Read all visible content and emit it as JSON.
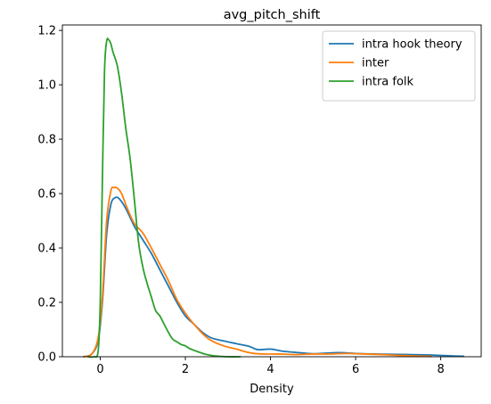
{
  "chart_data": {
    "type": "line",
    "title": "avg_pitch_shift",
    "xlabel": "Density",
    "ylabel": "",
    "xlim": [
      -0.89,
      8.95
    ],
    "ylim": [
      0,
      1.22
    ],
    "xticks": [
      0,
      2,
      4,
      6,
      8
    ],
    "yticks": [
      0.0,
      0.2,
      0.4,
      0.6,
      0.8,
      1.0,
      1.2
    ],
    "grid": false,
    "legend_position": "top-right",
    "series": [
      {
        "name": "intra hook theory",
        "color": "#1f77b4",
        "points": [
          [
            -0.4,
            0.0
          ],
          [
            -0.2,
            0.01
          ],
          [
            -0.05,
            0.06
          ],
          [
            0.05,
            0.2
          ],
          [
            0.15,
            0.45
          ],
          [
            0.25,
            0.56
          ],
          [
            0.35,
            0.585
          ],
          [
            0.45,
            0.58
          ],
          [
            0.6,
            0.545
          ],
          [
            0.8,
            0.48
          ],
          [
            1.0,
            0.43
          ],
          [
            1.2,
            0.38
          ],
          [
            1.4,
            0.32
          ],
          [
            1.6,
            0.26
          ],
          [
            1.8,
            0.2
          ],
          [
            2.0,
            0.15
          ],
          [
            2.2,
            0.12
          ],
          [
            2.4,
            0.09
          ],
          [
            2.6,
            0.07
          ],
          [
            2.9,
            0.058
          ],
          [
            3.2,
            0.048
          ],
          [
            3.5,
            0.038
          ],
          [
            3.7,
            0.026
          ],
          [
            4.0,
            0.028
          ],
          [
            4.3,
            0.02
          ],
          [
            4.6,
            0.016
          ],
          [
            5.0,
            0.011
          ],
          [
            5.3,
            0.013
          ],
          [
            5.6,
            0.015
          ],
          [
            6.0,
            0.012
          ],
          [
            6.4,
            0.01
          ],
          [
            6.8,
            0.009
          ],
          [
            7.2,
            0.008
          ],
          [
            7.6,
            0.007
          ],
          [
            8.0,
            0.005
          ],
          [
            8.3,
            0.003
          ],
          [
            8.55,
            0.002
          ]
        ]
      },
      {
        "name": "inter",
        "color": "#ff7f0e",
        "points": [
          [
            -0.4,
            0.0
          ],
          [
            -0.2,
            0.01
          ],
          [
            -0.05,
            0.07
          ],
          [
            0.05,
            0.22
          ],
          [
            0.15,
            0.5
          ],
          [
            0.25,
            0.61
          ],
          [
            0.32,
            0.622
          ],
          [
            0.4,
            0.62
          ],
          [
            0.5,
            0.6
          ],
          [
            0.65,
            0.54
          ],
          [
            0.8,
            0.49
          ],
          [
            1.0,
            0.455
          ],
          [
            1.2,
            0.4
          ],
          [
            1.4,
            0.34
          ],
          [
            1.6,
            0.28
          ],
          [
            1.8,
            0.21
          ],
          [
            2.0,
            0.16
          ],
          [
            2.2,
            0.12
          ],
          [
            2.4,
            0.085
          ],
          [
            2.6,
            0.06
          ],
          [
            2.9,
            0.04
          ],
          [
            3.2,
            0.028
          ],
          [
            3.5,
            0.015
          ],
          [
            3.8,
            0.01
          ],
          [
            4.2,
            0.01
          ],
          [
            4.6,
            0.008
          ],
          [
            5.0,
            0.01
          ],
          [
            5.4,
            0.01
          ],
          [
            5.8,
            0.012
          ],
          [
            6.2,
            0.01
          ],
          [
            6.6,
            0.008
          ],
          [
            7.0,
            0.005
          ],
          [
            7.4,
            0.003
          ],
          [
            7.8,
            0.001
          ]
        ]
      },
      {
        "name": "intra folk",
        "color": "#2ca02c",
        "points": [
          [
            -0.3,
            0.0
          ],
          [
            -0.15,
            0.0
          ],
          [
            -0.05,
            0.02
          ],
          [
            0.0,
            0.2
          ],
          [
            0.05,
            0.65
          ],
          [
            0.1,
            1.05
          ],
          [
            0.15,
            1.16
          ],
          [
            0.2,
            1.165
          ],
          [
            0.25,
            1.15
          ],
          [
            0.3,
            1.12
          ],
          [
            0.4,
            1.07
          ],
          [
            0.5,
            0.97
          ],
          [
            0.6,
            0.84
          ],
          [
            0.7,
            0.73
          ],
          [
            0.8,
            0.58
          ],
          [
            0.9,
            0.42
          ],
          [
            1.0,
            0.33
          ],
          [
            1.1,
            0.27
          ],
          [
            1.2,
            0.22
          ],
          [
            1.3,
            0.17
          ],
          [
            1.4,
            0.15
          ],
          [
            1.5,
            0.12
          ],
          [
            1.6,
            0.09
          ],
          [
            1.7,
            0.065
          ],
          [
            1.8,
            0.055
          ],
          [
            1.9,
            0.045
          ],
          [
            2.0,
            0.04
          ],
          [
            2.1,
            0.03
          ],
          [
            2.3,
            0.018
          ],
          [
            2.5,
            0.008
          ],
          [
            2.7,
            0.003
          ],
          [
            3.0,
            0.0
          ],
          [
            3.3,
            0.0
          ]
        ]
      }
    ]
  }
}
